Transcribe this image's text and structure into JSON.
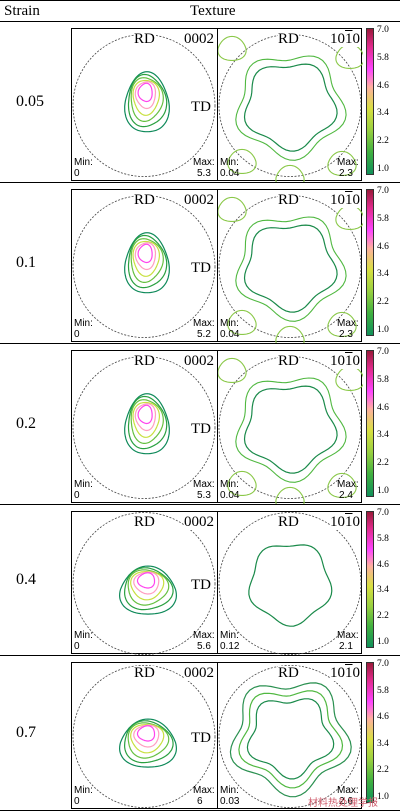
{
  "header": {
    "col1": "Strain",
    "col2": "Texture"
  },
  "labels": {
    "rd": "RD",
    "td": "TD",
    "pole1": "0002",
    "min": "Min:",
    "max": "Max:"
  },
  "pole2": {
    "base": "10",
    "bar": "1",
    "end": "0"
  },
  "colorbar_ticks": [
    "7.0",
    "5.8",
    "4.6",
    "3.4",
    "2.2",
    "1.0"
  ],
  "rows": [
    {
      "strain": "0.05",
      "min1": "0",
      "max1": "5.3",
      "min2": "0.04",
      "max2": "2.3"
    },
    {
      "strain": "0.1",
      "min1": "0",
      "max1": "5.2",
      "min2": "0.04",
      "max2": "2.3"
    },
    {
      "strain": "0.2",
      "min1": "0",
      "max1": "5.3",
      "min2": "0.04",
      "max2": "2.4"
    },
    {
      "strain": "0.4",
      "min1": "0",
      "max1": "5.6",
      "min2": "0.12",
      "max2": "2.1"
    },
    {
      "strain": "0.7",
      "min1": "0",
      "max1": "6",
      "min2": "0.03",
      "max2": "2.6"
    }
  ],
  "watermark": "材料热处理学报"
}
